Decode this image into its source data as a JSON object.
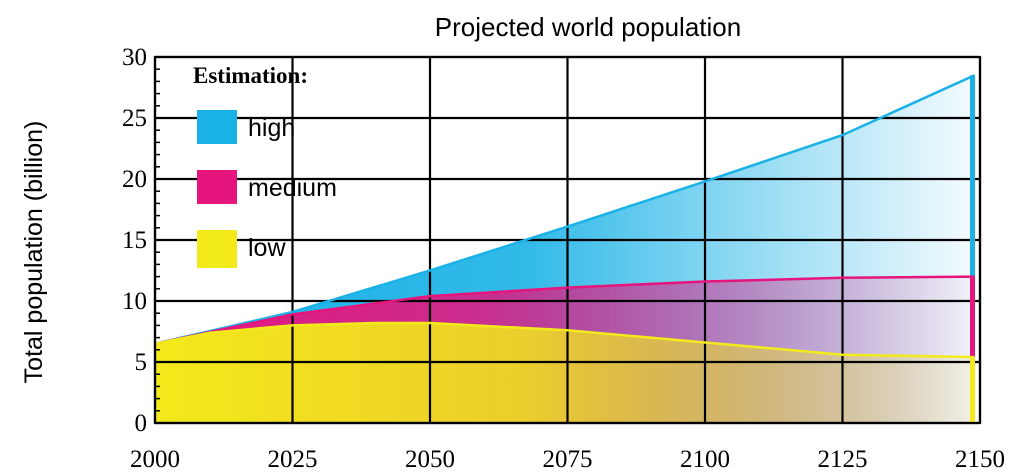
{
  "chart_data": {
    "type": "area",
    "title": "Projected world population",
    "xlabel": "",
    "ylabel": "Total population (billion)",
    "xlim": [
      2000,
      2150
    ],
    "ylim": [
      0,
      30
    ],
    "x_ticks": [
      2000,
      2025,
      2050,
      2075,
      2100,
      2125,
      2150
    ],
    "y_ticks": [
      0,
      5,
      10,
      15,
      20,
      25,
      30
    ],
    "grid": true,
    "legend": {
      "title": "Estimation:",
      "placement": "top-left",
      "entries": [
        "high",
        "medium",
        "low"
      ]
    },
    "series": [
      {
        "name": "high",
        "color": "#1AB2E6",
        "x": [
          2000,
          2025,
          2050,
          2075,
          2100,
          2125,
          2149
        ],
        "values": [
          6.5,
          9.1,
          12.5,
          16.1,
          19.8,
          23.6,
          28.5
        ]
      },
      {
        "name": "medium",
        "color": "#E6157E",
        "x": [
          2000,
          2025,
          2050,
          2075,
          2100,
          2125,
          2149
        ],
        "values": [
          6.5,
          8.9,
          10.4,
          11.1,
          11.6,
          11.9,
          12.0
        ]
      },
      {
        "name": "low",
        "color": "#F2EA1A",
        "x": [
          2000,
          2010,
          2025,
          2040,
          2050,
          2075,
          2100,
          2125,
          2149
        ],
        "values": [
          6.5,
          7.4,
          8.0,
          8.2,
          8.2,
          7.6,
          6.6,
          5.6,
          5.4
        ]
      }
    ]
  }
}
